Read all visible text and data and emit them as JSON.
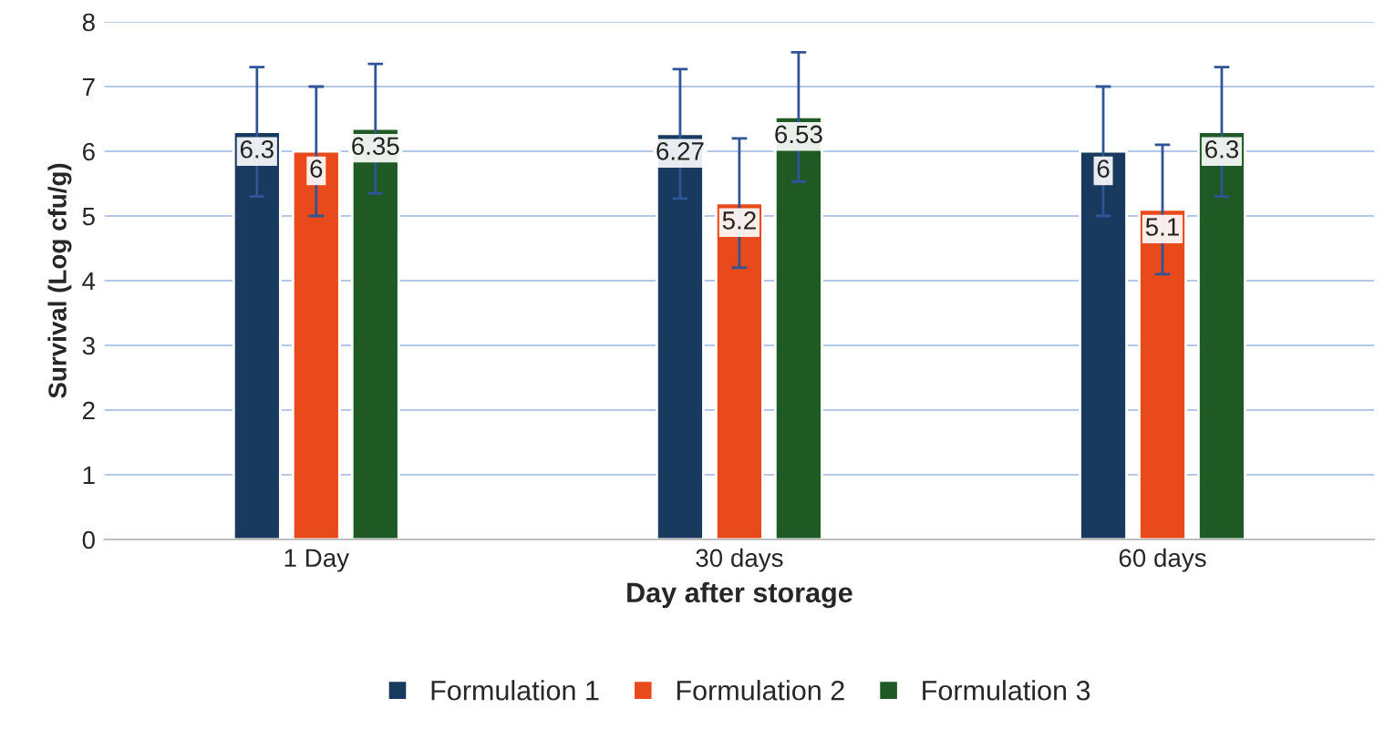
{
  "chart_data": {
    "type": "bar",
    "xlabel": "Day after storage",
    "ylabel": "Survival (Log cfu/g)",
    "categories": [
      "1 Day",
      "30 days",
      "60 days"
    ],
    "series": [
      {
        "name": "Formulation 1",
        "color": "#173a5e",
        "values": [
          6.3,
          6.27,
          6
        ],
        "errors": [
          1,
          1,
          1
        ]
      },
      {
        "name": "Formulation 2",
        "color": "#e84a1c",
        "values": [
          6,
          5.2,
          5.1
        ],
        "errors": [
          1,
          1,
          1
        ]
      },
      {
        "name": "Formulation 3",
        "color": "#1f5a24",
        "values": [
          6.35,
          6.53,
          6.3
        ],
        "errors": [
          1,
          1,
          1
        ]
      }
    ],
    "ylim": [
      0,
      8
    ],
    "yticks": [
      0,
      1,
      2,
      3,
      4,
      5,
      6,
      7,
      8
    ],
    "grid": "y",
    "legend": "bottom",
    "data_labels": true
  }
}
